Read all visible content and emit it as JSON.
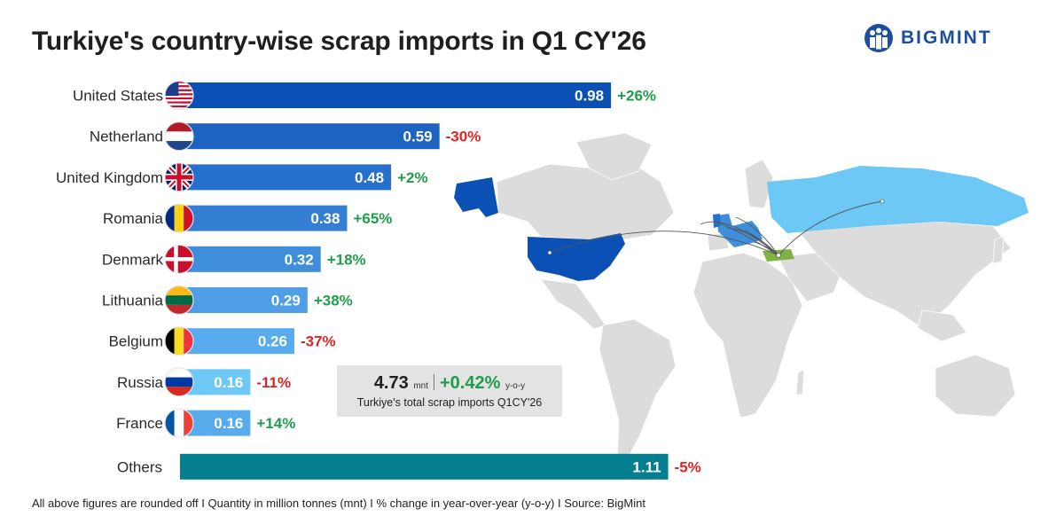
{
  "title": "Turkiye's country-wise scrap imports in Q1 CY'26",
  "brand": {
    "name": "BIGMINT",
    "color": "#1c4fa0"
  },
  "summary": {
    "total": "4.73",
    "total_unit": "mnt",
    "change": "+0.42%",
    "change_unit": "y-o-y",
    "caption": "Turkiye's total scrap imports Q1CY'26"
  },
  "footer": "All above figures are rounded off  I  Quantity in million tonnes (mnt)  I  % change in year-over-year (y-o-y)  I  Source: BigMint",
  "colors": {
    "positive": "#1f9d4c",
    "negative": "#e02424",
    "others_bar": "#057f8f",
    "map_land": "#dcdcdc",
    "turkiye": "#7cb342"
  },
  "chart_data": {
    "type": "bar",
    "orientation": "horizontal",
    "unit": "mnt",
    "categories": [
      "United States",
      "Netherland",
      "United Kingdom",
      "Romania",
      "Denmark",
      "Lithuania",
      "Belgium",
      "Russia",
      "France",
      "Others"
    ],
    "values": [
      0.98,
      0.59,
      0.48,
      0.38,
      0.32,
      0.29,
      0.26,
      0.16,
      0.16,
      1.11
    ],
    "value_labels": [
      "0.98",
      "0.59",
      "0.48",
      "0.38",
      "0.32",
      "0.29",
      "0.26",
      "0.16",
      "0.16",
      "1.11"
    ],
    "changes": [
      "+26%",
      "-30%",
      "+2%",
      "+65%",
      "+18%",
      "+38%",
      "-37%",
      "-11%",
      "+14%",
      "-5%"
    ],
    "bar_colors": [
      "#0b50b4",
      "#1d63c2",
      "#2670cb",
      "#347fd4",
      "#3f8edc",
      "#4f9ee6",
      "#58abec",
      "#6ec8f6",
      "#58abec",
      "#057f8f"
    ],
    "flags": [
      "us-flag-icon",
      "netherlands-flag-icon",
      "uk-flag-icon",
      "romania-flag-icon",
      "denmark-flag-icon",
      "lithuania-flag-icon",
      "belgium-flag-icon",
      "russia-flag-icon",
      "france-flag-icon",
      ""
    ]
  }
}
